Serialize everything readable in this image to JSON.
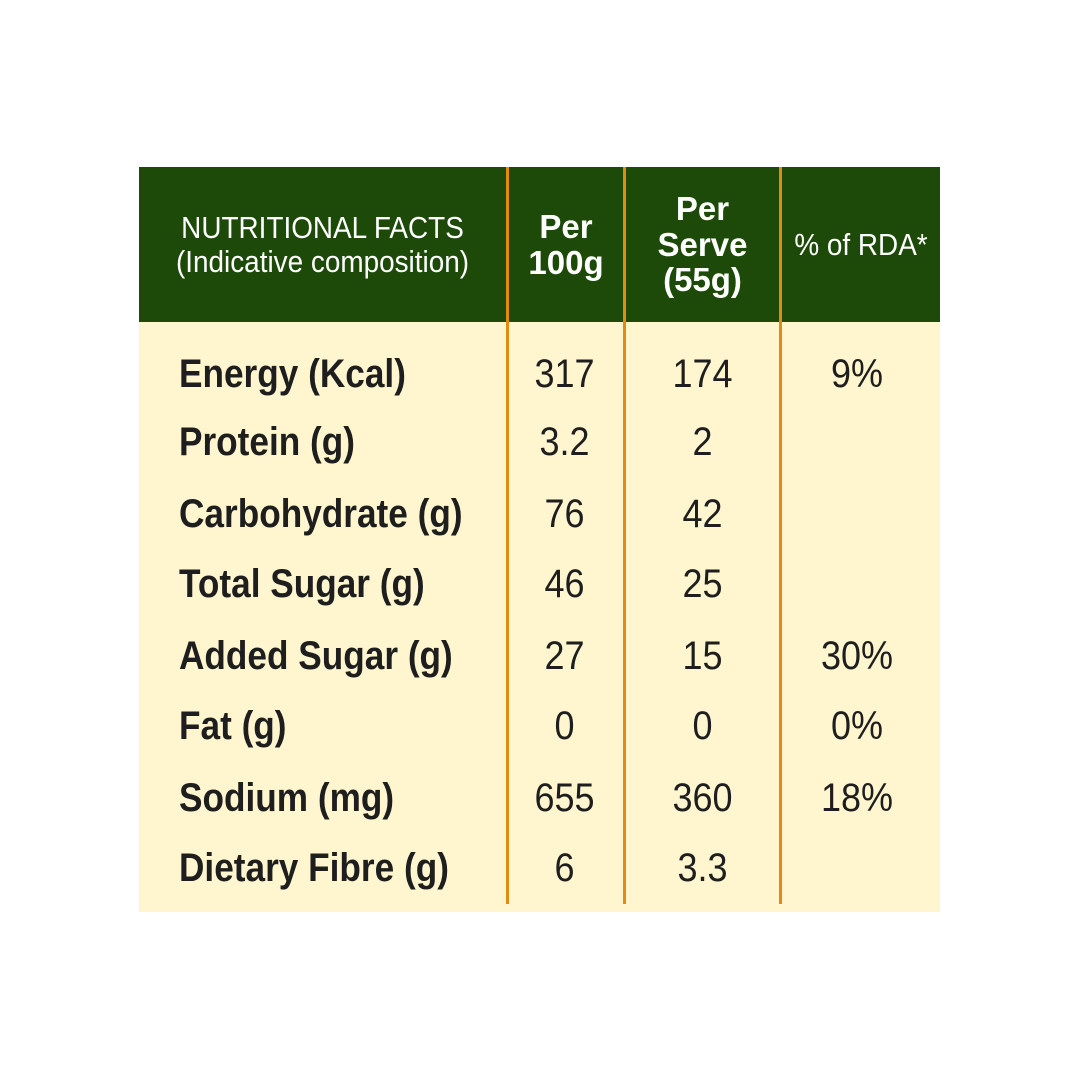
{
  "header": {
    "facts_line1": "NUTRITIONAL FACTS",
    "facts_line2": "(Indicative composition)",
    "per100_line1": "Per",
    "per100_line2": "100g",
    "serve_line1": "Per",
    "serve_line2": "Serve",
    "serve_line3": "(55g)",
    "rda": "% of RDA*"
  },
  "rows": [
    {
      "label": "Energy (Kcal)",
      "per100": "317",
      "serve": "174",
      "rda": "9%"
    },
    {
      "label": "Protein (g)",
      "per100": "3.2",
      "serve": "2",
      "rda": ""
    },
    {
      "label": "Carbohydrate (g)",
      "per100": "76",
      "serve": "42",
      "rda": ""
    },
    {
      "label": "Total Sugar (g)",
      "per100": "46",
      "serve": "25",
      "rda": ""
    },
    {
      "label": "Added Sugar (g)",
      "per100": "27",
      "serve": "15",
      "rda": "30%"
    },
    {
      "label": "Fat (g)",
      "per100": "0",
      "serve": "0",
      "rda": "0%"
    },
    {
      "label": "Sodium (mg)",
      "per100": "655",
      "serve": "360",
      "rda": "18%"
    },
    {
      "label": "Dietary Fibre (g)",
      "per100": "6",
      "serve": "3.3",
      "rda": ""
    }
  ],
  "colors": {
    "header_bg": "#1d4a08",
    "body_bg": "#fff6cf",
    "divider": "#e38a10"
  }
}
